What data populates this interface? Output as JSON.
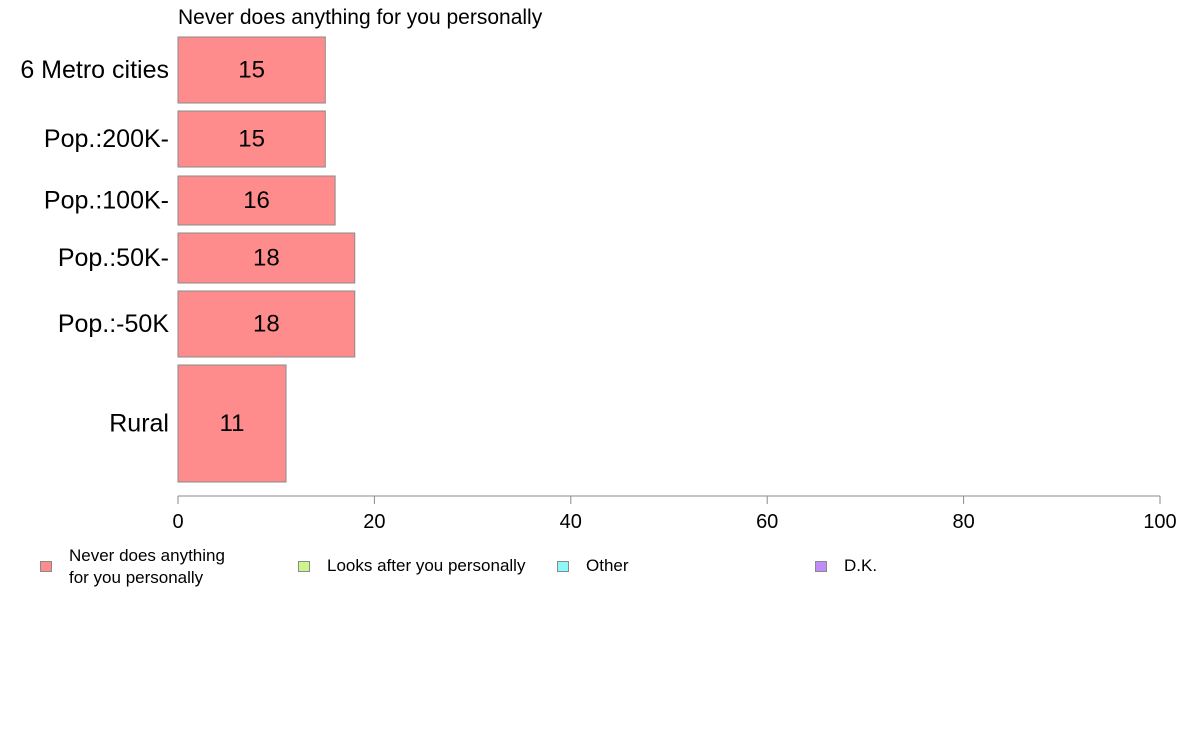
{
  "chart_data": {
    "type": "bar",
    "orientation": "horizontal",
    "title": "Never does anything for you personally",
    "categories": [
      "6 Metro cities",
      "Pop.:200K-",
      "Pop.:100K-",
      "Pop.:50K-",
      "Pop.:-50K",
      "Rural"
    ],
    "series": [
      {
        "name": "Never does anything for you personally",
        "color": "#ff8c8c",
        "values": [
          15,
          15,
          16,
          18,
          18,
          11
        ],
        "data_labels": [
          "15",
          "15",
          "16",
          "18",
          "18",
          "11"
        ]
      }
    ],
    "xlim": [
      0,
      100
    ],
    "x_ticks": [
      0,
      20,
      40,
      60,
      80,
      100
    ],
    "x_tick_labels": [
      "0",
      "20",
      "40",
      "60",
      "80",
      "100"
    ],
    "grid": false,
    "legend_position": "bottom",
    "legend": [
      {
        "label": "Never does anything\nfor you personally",
        "color": "#ff8c8c"
      },
      {
        "label": "Looks after you personally",
        "color": "#ccf58c"
      },
      {
        "label": "Other",
        "color": "#8cf8f8"
      },
      {
        "label": "D.K.",
        "color": "#c08cf8"
      }
    ]
  }
}
